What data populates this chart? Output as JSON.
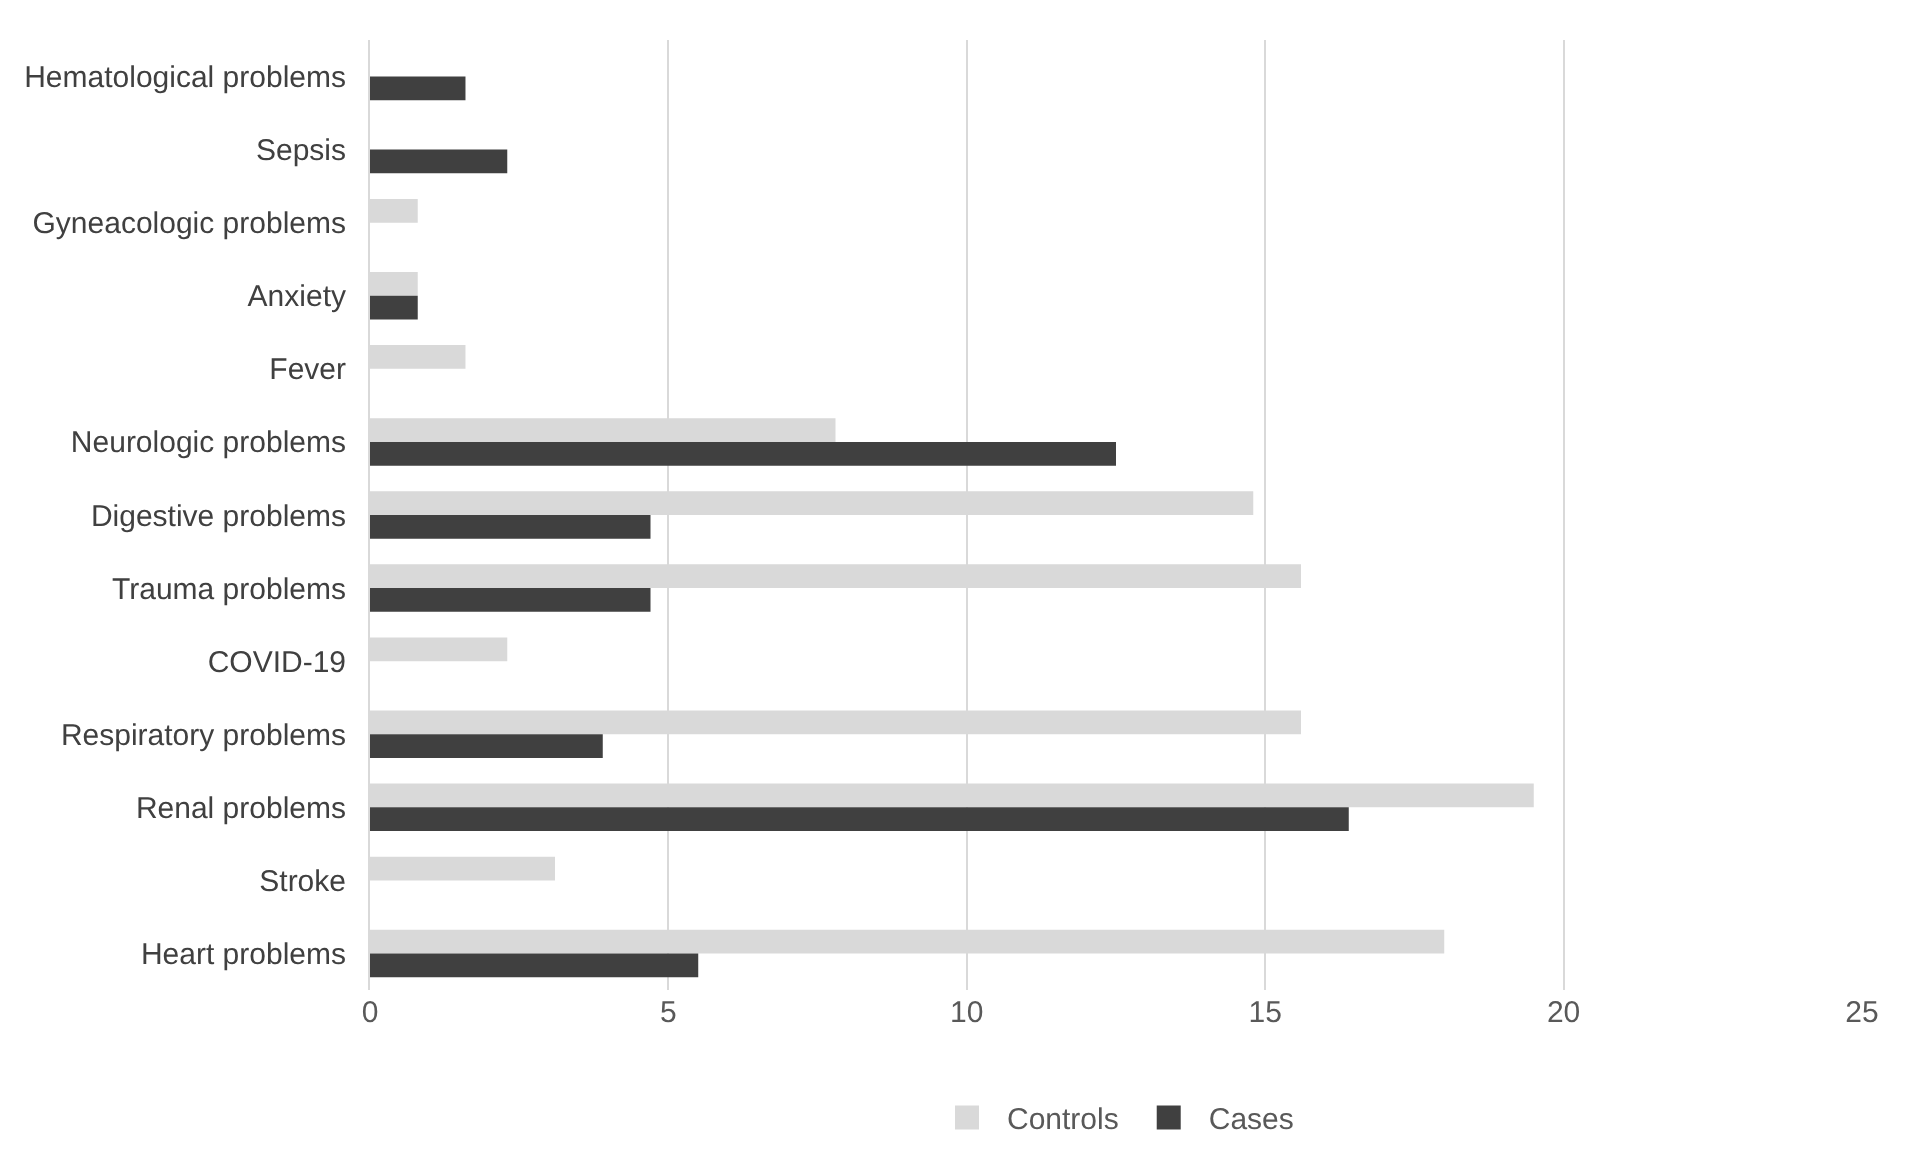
{
  "chart_data": {
    "type": "bar",
    "orientation": "horizontal",
    "categories": [
      "Hematological problems",
      "Sepsis",
      "Gyneacologic problems",
      "Anxiety",
      "Fever",
      "Neurologic problems",
      "Digestive problems",
      "Trauma problems",
      "COVID-19",
      "Respiratory problems",
      "Renal problems",
      "Stroke",
      "Heart problems"
    ],
    "series": [
      {
        "name": "Controls",
        "color": "#d9d9d9",
        "values": [
          null,
          null,
          0.8,
          0.8,
          1.6,
          7.8,
          14.8,
          15.6,
          2.3,
          15.6,
          19.5,
          3.1,
          18.0
        ]
      },
      {
        "name": "Cases",
        "color": "#404040",
        "values": [
          1.6,
          2.3,
          null,
          0.8,
          null,
          12.5,
          4.7,
          4.7,
          null,
          3.9,
          16.4,
          null,
          5.5
        ]
      }
    ],
    "xlim": [
      0,
      25
    ],
    "xticks": [
      0,
      5,
      10,
      15,
      20,
      25
    ],
    "grid": "x",
    "legend": "bottom"
  }
}
